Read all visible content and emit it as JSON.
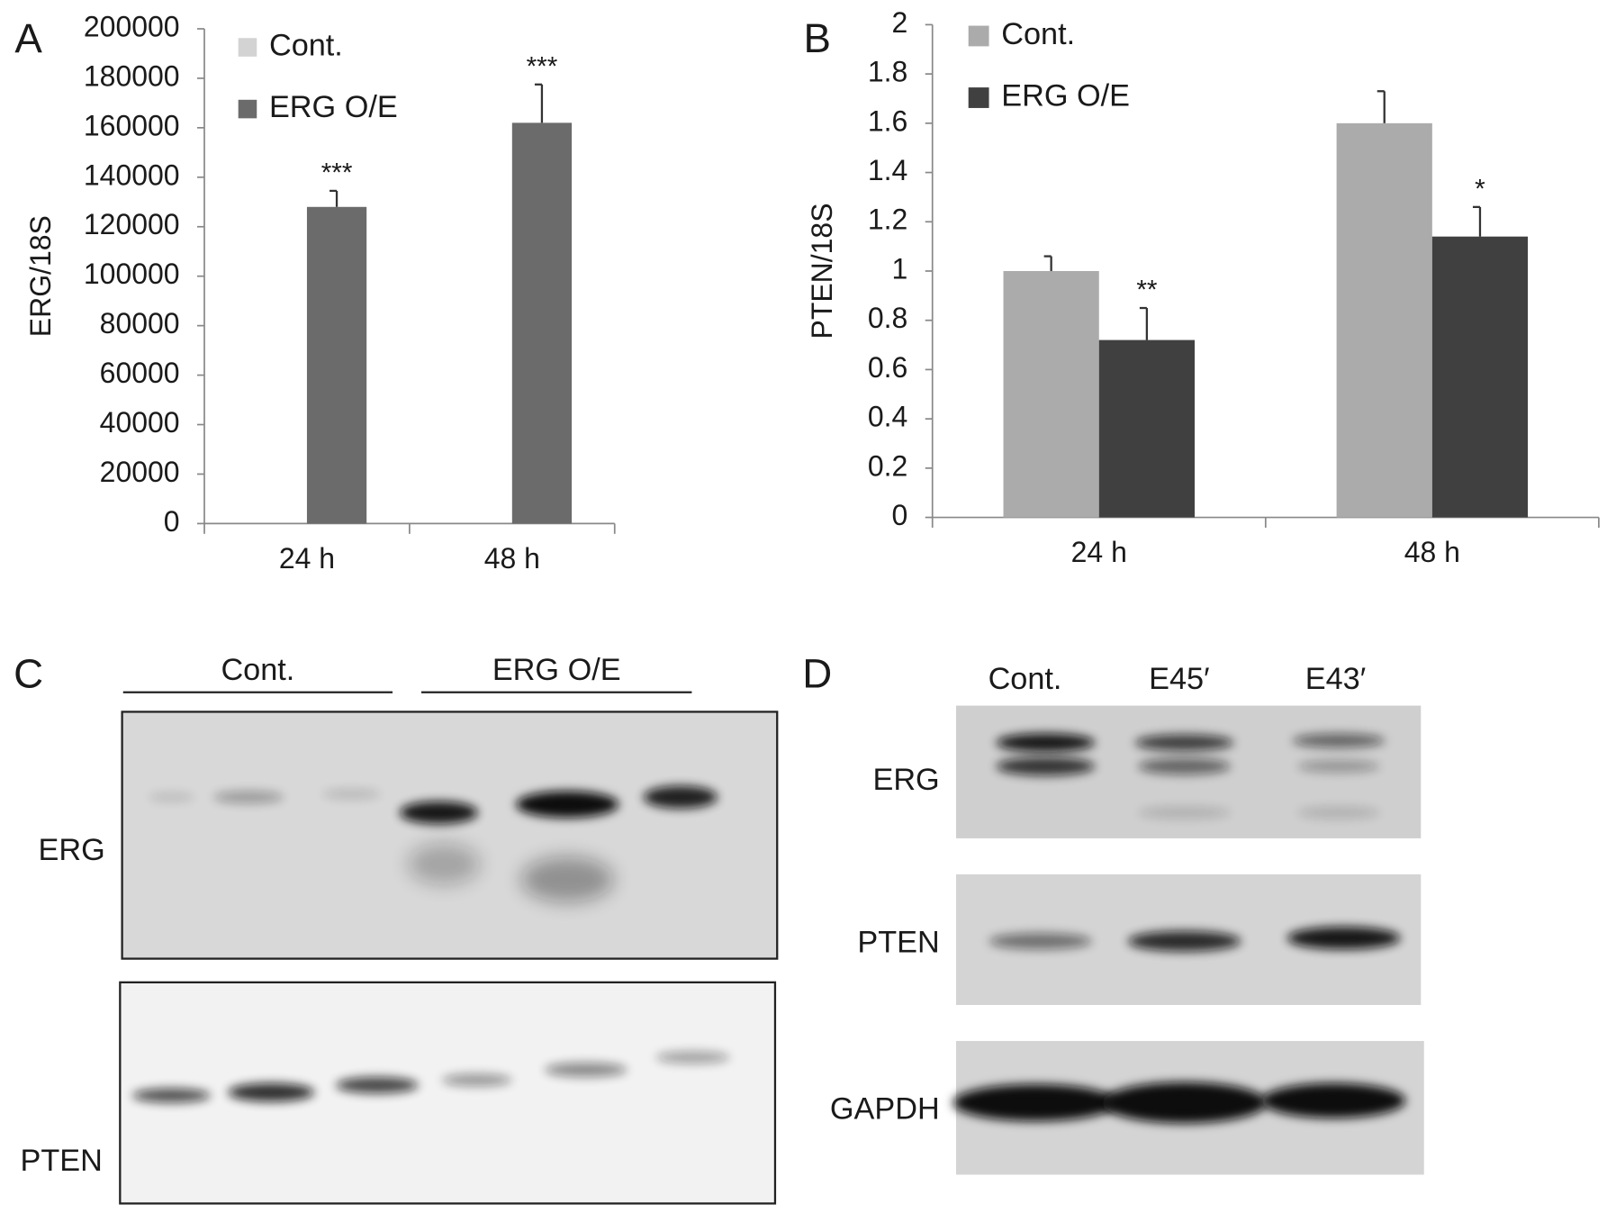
{
  "chart_data": [
    {
      "type": "bar",
      "panel_label": "A",
      "y_label": "ERG/18S",
      "categories": [
        "24 h",
        "48 h"
      ],
      "series": [
        {
          "name": "Cont.",
          "color": "#d3d3d3",
          "values": [
            0,
            0
          ]
        },
        {
          "name": "ERG O/E",
          "color": "#6b6b6b",
          "values": [
            128000,
            162000
          ],
          "errors": [
            6500,
            15500
          ],
          "annotations": [
            "***",
            "***"
          ]
        }
      ],
      "ylim": [
        0,
        200000
      ],
      "yticks": [
        0,
        20000,
        40000,
        60000,
        80000,
        100000,
        120000,
        140000,
        160000,
        180000,
        200000
      ],
      "grid": false,
      "legend": "top-left"
    },
    {
      "type": "bar",
      "panel_label": "B",
      "y_label": "PTEN/18S",
      "categories": [
        "24 h",
        "48 h"
      ],
      "series": [
        {
          "name": "Cont.",
          "color": "#ababab",
          "values": [
            1.0,
            1.6
          ],
          "errors": [
            0.06,
            0.13
          ]
        },
        {
          "name": "ERG O/E",
          "color": "#404040",
          "values": [
            0.72,
            1.14
          ],
          "errors": [
            0.13,
            0.12
          ],
          "annotations": [
            "**",
            "*"
          ]
        }
      ],
      "ylim": [
        0,
        2
      ],
      "yticks": [
        0,
        0.2,
        0.4,
        0.6,
        0.8,
        1,
        1.2,
        1.4,
        1.6,
        1.8,
        2
      ],
      "grid": false,
      "legend": "top-left"
    }
  ],
  "panels": [
    {
      "label": "C",
      "groups": [
        "Cont.",
        "ERG O/E"
      ],
      "rows": [
        "ERG",
        "PTEN"
      ]
    },
    {
      "label": "D",
      "lanes": [
        "Cont.",
        "E45′",
        "E43′"
      ],
      "rows": [
        "ERG",
        "PTEN",
        "GAPDH"
      ]
    }
  ]
}
